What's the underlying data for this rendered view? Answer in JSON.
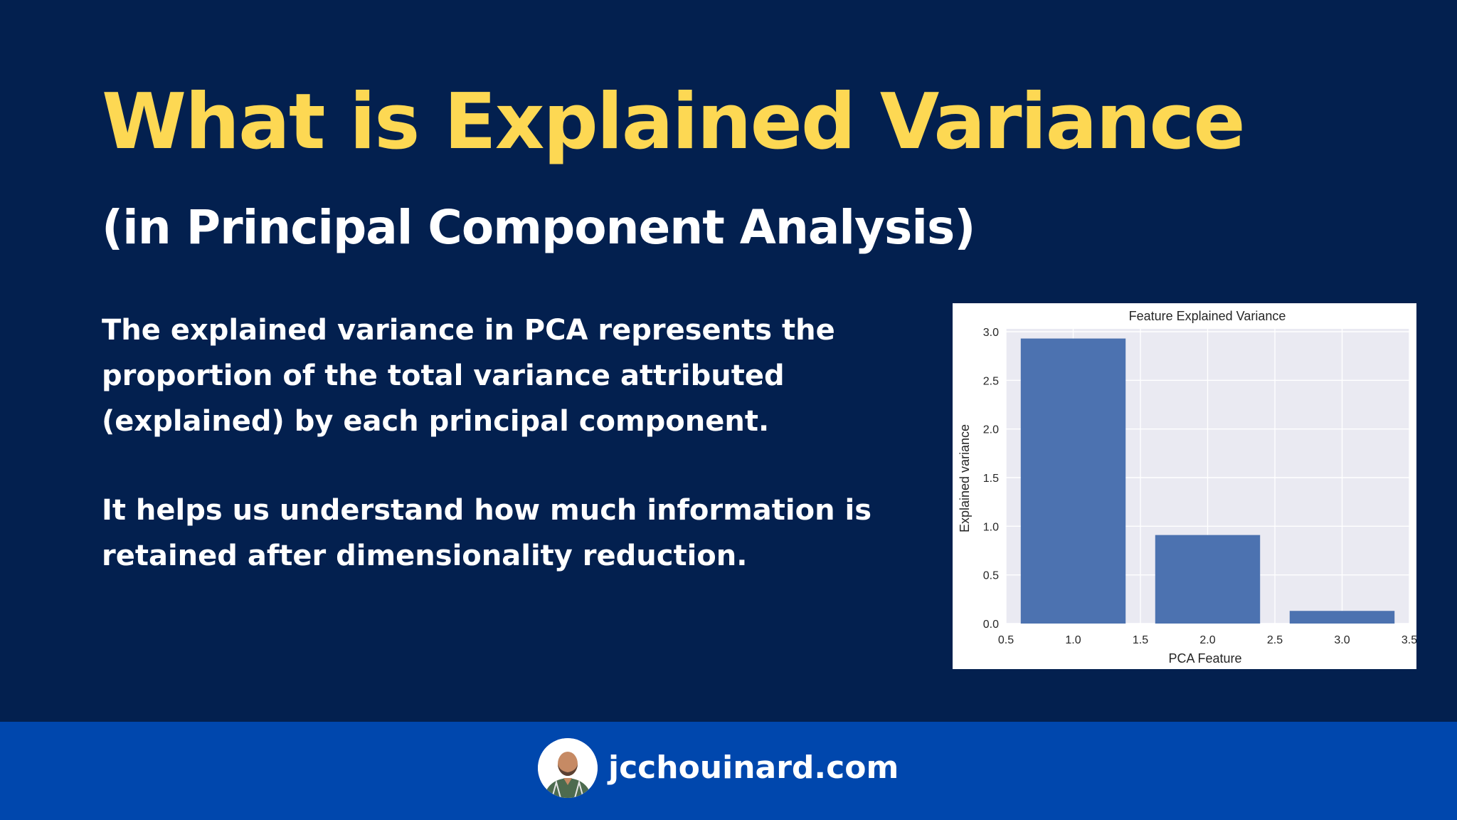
{
  "title": "What is Explained Variance",
  "subtitle": "(in Principal Component Analysis)",
  "paragraphs": [
    "The explained variance in PCA represents the proportion of the total variance attributed (explained) by each principal component.",
    "It helps us understand how much information is retained after dimensionality reduction."
  ],
  "footer": {
    "site": "jcchouinard.com"
  },
  "colors": {
    "background": "#03204f",
    "title": "#fdd853",
    "footer": "#0047ad",
    "bar": "#4c72b0",
    "plot_area": "#eaeaf2"
  },
  "chart_data": {
    "type": "bar",
    "title": "Feature Explained Variance",
    "xlabel": "PCA Feature",
    "ylabel": "Explained variance",
    "x": [
      1,
      2,
      3
    ],
    "values": [
      2.93,
      0.91,
      0.13
    ],
    "xlim": [
      0.5,
      3.5
    ],
    "ylim": [
      0,
      3.0
    ],
    "xticks": [
      "0.5",
      "1.0",
      "1.5",
      "2.0",
      "2.5",
      "3.0",
      "3.5"
    ],
    "yticks": [
      "0.0",
      "0.5",
      "1.0",
      "1.5",
      "2.0",
      "2.5",
      "3.0"
    ],
    "grid": true
  }
}
